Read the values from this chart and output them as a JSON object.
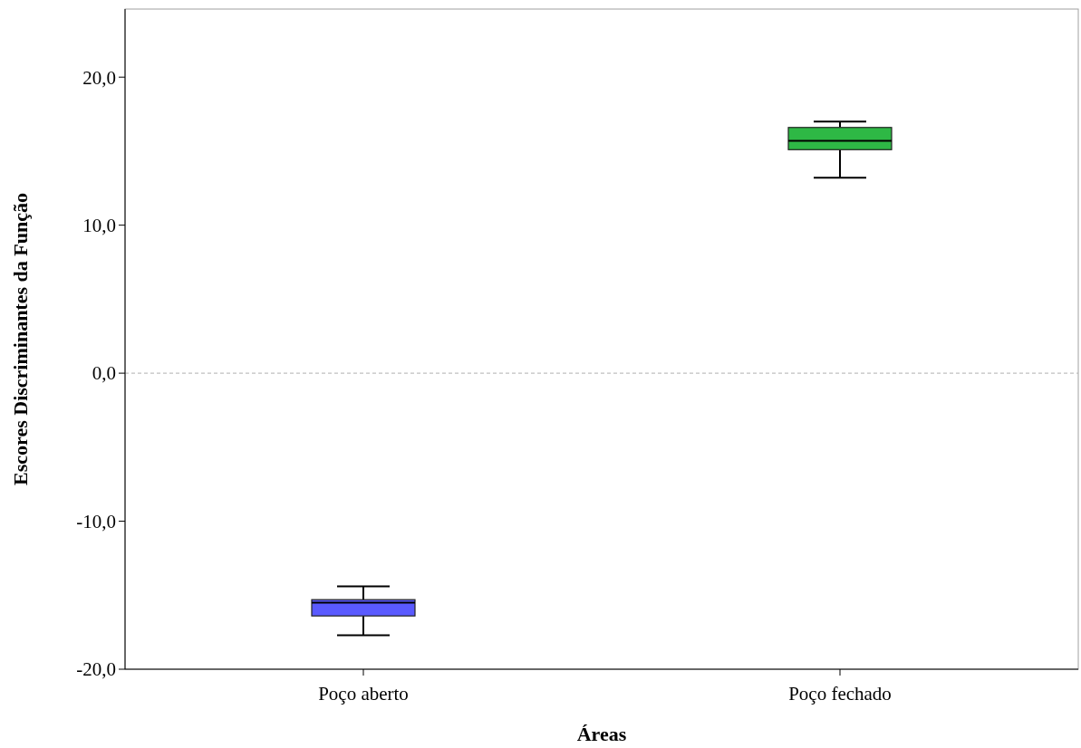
{
  "chart_data": {
    "type": "box",
    "xlabel": "Áreas",
    "ylabel": "Escores Discriminantes da Função",
    "categories": [
      "Poço aberto",
      "Poço fechado"
    ],
    "series": [
      {
        "color": "#5a5aff",
        "boxes": [
          {
            "low": -17.7,
            "q1": -16.4,
            "median": -15.5,
            "q3": -15.3,
            "high": -14.4
          },
          null
        ]
      },
      {
        "color": "#2eb845",
        "boxes": [
          null,
          {
            "low": 13.2,
            "q1": 15.1,
            "median": 15.7,
            "q3": 16.6,
            "high": 17.0
          }
        ]
      }
    ],
    "ylim": [
      -20,
      24.6
    ],
    "yticks": [
      {
        "value": -20,
        "label": "-20,0"
      },
      {
        "value": -10,
        "label": "-10,0"
      },
      {
        "value": 0,
        "label": "0,0"
      },
      {
        "value": 10,
        "label": "10,0"
      },
      {
        "value": 20,
        "label": "20,0"
      }
    ],
    "ref_lines": [
      {
        "axis": "y",
        "value": 0,
        "color": "#b0b0b0",
        "line_style": "dashed"
      }
    ],
    "grid": false
  }
}
